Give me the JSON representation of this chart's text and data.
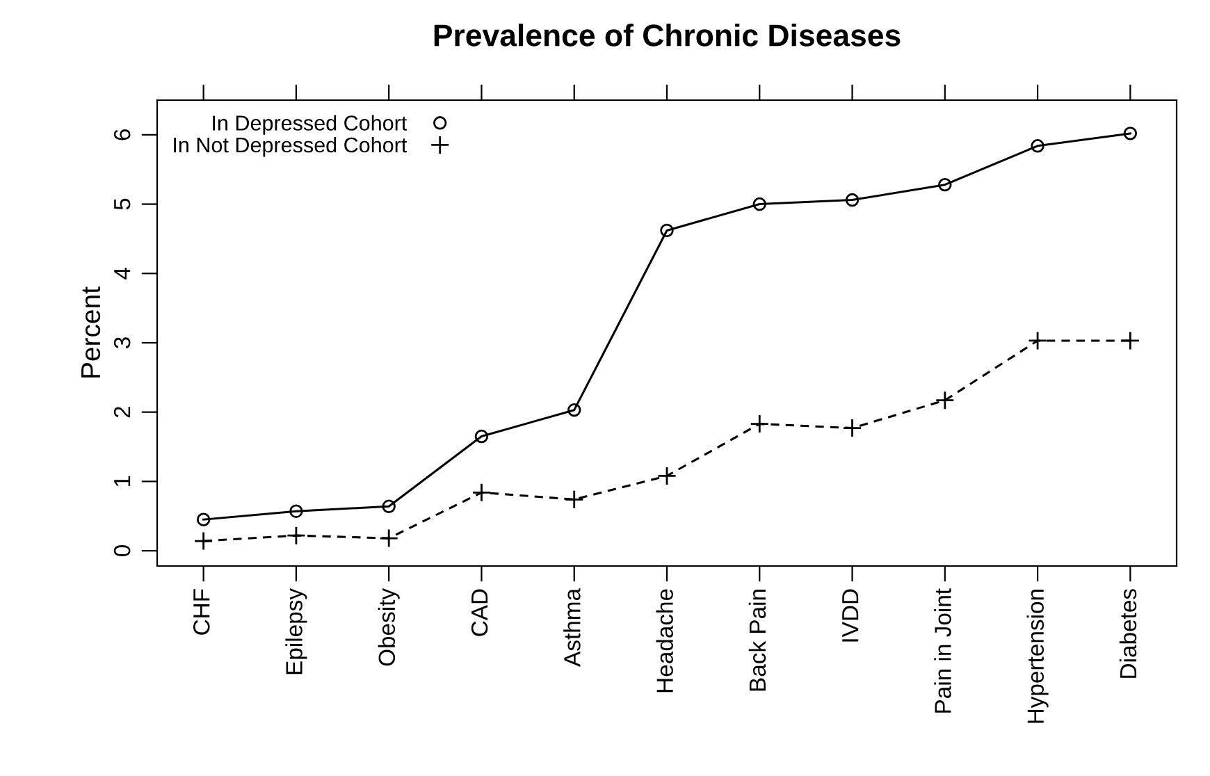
{
  "chart_data": {
    "type": "line",
    "title": "Prevalence of Chronic Diseases",
    "ylabel": "Percent",
    "categories": [
      "CHF",
      "Epilepsy",
      "Obesity",
      "CAD",
      "Asthma",
      "Headache",
      "Back Pain",
      "IVDD",
      "Pain in Joint",
      "Hypertension",
      "Diabetes"
    ],
    "series": [
      {
        "name": "In Depressed Cohort",
        "color": "#000000",
        "marker": "circle",
        "line_style": "solid",
        "values": [
          0.45,
          0.57,
          0.64,
          1.65,
          2.03,
          4.62,
          5.0,
          5.06,
          5.28,
          5.84,
          6.02
        ]
      },
      {
        "name": "In Not Depressed Cohort",
        "color": "#000000",
        "marker": "cross",
        "line_style": "dashed",
        "values": [
          0.14,
          0.22,
          0.18,
          0.84,
          0.74,
          1.08,
          1.83,
          1.77,
          2.17,
          3.03,
          3.03
        ]
      }
    ],
    "ylim": [
      -0.22,
      6.5
    ],
    "yticks": [
      0,
      1,
      2,
      3,
      4,
      5,
      6
    ],
    "grid": false,
    "legend": "top left"
  }
}
